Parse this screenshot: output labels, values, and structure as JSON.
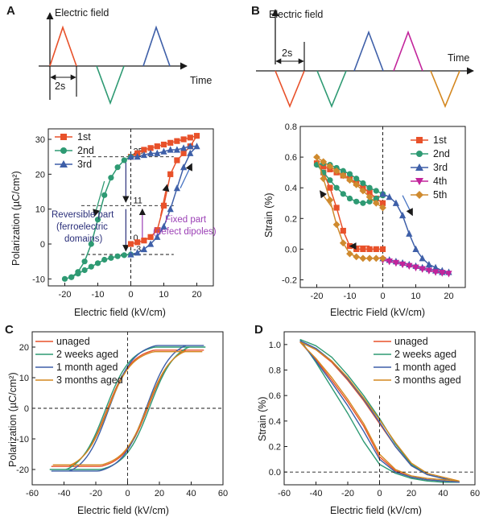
{
  "colors": {
    "first": "#e8512a",
    "second": "#2e9a73",
    "third": "#3e5fa8",
    "fourth": "#c2249b",
    "fifth": "#cf8a2e",
    "arrow_green": "#2e9a73",
    "arrow_red": "#e8512a",
    "arrow_blue": "#4a76c4",
    "arrow_navy": "#2a2f7a",
    "arrow_purple": "#9b3fb5",
    "aged_unaged": "#e8512a",
    "aged_2weeks": "#2e9a73",
    "aged_1month": "#3e5fa8",
    "aged_3months": "#d4871f"
  },
  "panels": {
    "A": {
      "label": "A",
      "wave_ylabel": "Electric field",
      "wave_xlabel": "Time",
      "dur": "2s"
    },
    "B": {
      "label": "B",
      "wave_ylabel": "Electric field",
      "wave_xlabel": "Time",
      "dur": "2s"
    },
    "C": {
      "label": "C"
    },
    "D": {
      "label": "D"
    }
  },
  "chart_data": [
    {
      "id": "A-waveform",
      "type": "line",
      "xlabel": "Time",
      "ylabel": "Electric field",
      "pulses": [
        {
          "sign": 1,
          "color": "first"
        },
        {
          "sign": -1,
          "color": "second"
        },
        {
          "sign": 1,
          "color": "third"
        }
      ],
      "annotation": "2s"
    },
    {
      "id": "B-waveform",
      "type": "line",
      "xlabel": "Time",
      "ylabel": "Electric field",
      "pulses": [
        {
          "sign": -1,
          "color": "first"
        },
        {
          "sign": -1,
          "color": "second"
        },
        {
          "sign": 1,
          "color": "third"
        },
        {
          "sign": 1,
          "color": "fourth"
        },
        {
          "sign": -1,
          "color": "fifth"
        }
      ],
      "annotation": "2s"
    },
    {
      "id": "A-plot",
      "type": "line",
      "xlabel": "Electric field (kV/cm)",
      "ylabel": "Polarization (µC/cm²)",
      "xlim": [
        -25,
        25
      ],
      "ylim": [
        -12,
        33
      ],
      "xticks": [
        -20,
        -10,
        0,
        10,
        20
      ],
      "yticks": [
        -10,
        0,
        10,
        20,
        30
      ],
      "legend_position": "top-left",
      "series": [
        {
          "name": "1st",
          "color": "first",
          "marker": "square",
          "x": [
            0,
            2,
            4,
            6,
            8,
            10,
            12,
            14,
            16,
            18,
            20,
            18,
            16,
            14,
            12,
            10,
            8,
            6,
            4,
            2,
            0
          ],
          "y": [
            0,
            0.5,
            1,
            2,
            4,
            11,
            20,
            24,
            26,
            28,
            31,
            30.5,
            30,
            29.5,
            29,
            28.5,
            28,
            27.5,
            27,
            26,
            25
          ]
        },
        {
          "name": "2nd",
          "color": "second",
          "marker": "circle",
          "x": [
            0,
            -2,
            -4,
            -6,
            -8,
            -10,
            -12,
            -14,
            -16,
            -18,
            -20,
            -18,
            -16,
            -14,
            -12,
            -10,
            -8,
            -6,
            -4,
            -2,
            0
          ],
          "y": [
            25,
            24,
            22,
            19,
            14,
            7,
            0,
            -5,
            -8,
            -9.5,
            -10,
            -9.5,
            -8.5,
            -7.5,
            -6.5,
            -5.5,
            -4.5,
            -4,
            -3.5,
            -3.2,
            -3
          ]
        },
        {
          "name": "3rd",
          "color": "third",
          "marker": "triangle",
          "x": [
            0,
            2,
            4,
            6,
            8,
            10,
            12,
            14,
            16,
            18,
            20,
            18,
            16,
            14,
            12,
            10,
            8,
            6,
            4,
            2,
            0
          ],
          "y": [
            -3,
            -2.5,
            -1.5,
            0,
            2,
            5,
            10,
            16,
            22,
            26,
            28,
            28,
            27.5,
            27,
            27,
            26.5,
            26,
            26,
            25.5,
            25,
            25
          ]
        }
      ],
      "guides": {
        "y_values": [
          25,
          11,
          -3
        ],
        "y_labels": [
          "25",
          "11",
          "-3"
        ],
        "zero_label": "0"
      },
      "annotations": [
        {
          "text": "Reversible part",
          "color": "arrow_navy"
        },
        {
          "text": "(ferroelectric",
          "color": "arrow_navy"
        },
        {
          "text": "domains)",
          "color": "arrow_navy"
        },
        {
          "text": "Fixed part",
          "color": "arrow_purple"
        },
        {
          "text": "(defect dipoles)",
          "color": "arrow_purple"
        }
      ]
    },
    {
      "id": "B-plot",
      "type": "line",
      "xlabel": "Electric Field (kV/cm)",
      "ylabel": "Strain (%)",
      "xlim": [
        -25,
        25
      ],
      "ylim": [
        -0.25,
        0.8
      ],
      "xticks": [
        -20,
        -10,
        0,
        10,
        20
      ],
      "yticks": [
        -0.2,
        0.0,
        0.2,
        0.4,
        0.6,
        0.8
      ],
      "yticklabels": [
        "-0.2",
        "0.0",
        "0.2",
        "0.4",
        "0.6",
        "0.8"
      ],
      "legend_position": "top-right",
      "series": [
        {
          "name": "1st",
          "color": "first",
          "marker": "square",
          "x": [
            0,
            -2,
            -4,
            -6,
            -8,
            -10,
            -12,
            -14,
            -16,
            -18,
            -20,
            -18,
            -16,
            -14,
            -12,
            -10,
            -8,
            -6,
            -4,
            -2,
            0
          ],
          "y": [
            0,
            0,
            0,
            0,
            0,
            0.02,
            0.12,
            0.27,
            0.4,
            0.5,
            0.56,
            0.54,
            0.52,
            0.5,
            0.48,
            0.46,
            0.43,
            0.4,
            0.37,
            0.33,
            0.3
          ]
        },
        {
          "name": "2nd",
          "color": "second",
          "marker": "circle",
          "x": [
            0,
            -2,
            -4,
            -6,
            -8,
            -10,
            -12,
            -14,
            -16,
            -18,
            -20,
            -18,
            -16,
            -14,
            -12,
            -10,
            -8,
            -6,
            -4,
            -2,
            0
          ],
          "y": [
            0.35,
            0.33,
            0.31,
            0.3,
            0.31,
            0.33,
            0.36,
            0.4,
            0.45,
            0.5,
            0.55,
            0.56,
            0.55,
            0.53,
            0.51,
            0.49,
            0.46,
            0.43,
            0.4,
            0.38,
            0.36
          ]
        },
        {
          "name": "3rd",
          "color": "third",
          "marker": "triangle",
          "x": [
            0,
            2,
            4,
            6,
            8,
            10,
            12,
            14,
            16,
            18,
            20,
            18,
            16,
            14,
            12,
            10,
            8,
            6,
            4,
            2,
            0
          ],
          "y": [
            0.36,
            0.34,
            0.3,
            0.22,
            0.1,
            0.0,
            -0.06,
            -0.1,
            -0.12,
            -0.14,
            -0.15,
            -0.15,
            -0.14,
            -0.13,
            -0.12,
            -0.11,
            -0.1,
            -0.09,
            -0.08,
            -0.07,
            -0.06
          ]
        },
        {
          "name": "4th",
          "color": "fourth",
          "marker": "triangle-down",
          "x": [
            0,
            2,
            4,
            6,
            8,
            10,
            12,
            14,
            16,
            18,
            20,
            18,
            16,
            14,
            12,
            10,
            8,
            6,
            4,
            2,
            0
          ],
          "y": [
            -0.07,
            -0.08,
            -0.09,
            -0.1,
            -0.11,
            -0.12,
            -0.13,
            -0.14,
            -0.15,
            -0.155,
            -0.16,
            -0.155,
            -0.15,
            -0.14,
            -0.13,
            -0.12,
            -0.11,
            -0.1,
            -0.09,
            -0.08,
            -0.07
          ]
        },
        {
          "name": "5th",
          "color": "fifth",
          "marker": "diamond",
          "x": [
            0,
            -2,
            -4,
            -6,
            -8,
            -10,
            -12,
            -14,
            -16,
            -18,
            -20,
            -18,
            -16,
            -14,
            -12,
            -10,
            -8,
            -6,
            -4,
            -2,
            0
          ],
          "y": [
            -0.06,
            -0.06,
            -0.06,
            -0.06,
            -0.05,
            -0.03,
            0.04,
            0.16,
            0.32,
            0.46,
            0.6,
            0.57,
            0.54,
            0.51,
            0.48,
            0.45,
            0.42,
            0.38,
            0.34,
            0.3,
            0.27
          ]
        }
      ]
    },
    {
      "id": "C-plot",
      "type": "line",
      "xlabel": "Electric field (kV/cm)",
      "ylabel": "Polarization (µC/cm²)",
      "xlim": [
        -60,
        60
      ],
      "ylim": [
        -25,
        25
      ],
      "xticks": [
        -60,
        -40,
        -20,
        0,
        20,
        40,
        60
      ],
      "yticks": [
        -20,
        -10,
        0,
        10,
        20
      ],
      "legend_position": "top-left",
      "series": [
        {
          "name": "unaged",
          "color": "aged_unaged",
          "emax": 48,
          "pmax": 19,
          "pr": 11,
          "ec": 13
        },
        {
          "name": "2 weeks aged",
          "color": "aged_2weeks",
          "emax": 49,
          "pmax": 20,
          "pr": 12,
          "ec": 14
        },
        {
          "name": "1 month aged",
          "color": "aged_1month",
          "emax": 48,
          "pmax": 20.5,
          "pr": 12,
          "ec": 12
        },
        {
          "name": "3 months aged",
          "color": "aged_3months",
          "emax": 47,
          "pmax": 18.5,
          "pr": 11,
          "ec": 12.5
        }
      ]
    },
    {
      "id": "D-plot",
      "type": "line",
      "xlabel": "Electric field (kV/cm)",
      "ylabel": "Strain (%)",
      "xlim": [
        -60,
        60
      ],
      "ylim": [
        -0.1,
        1.1
      ],
      "xticks": [
        -60,
        -40,
        -20,
        0,
        20,
        40,
        60
      ],
      "yticks": [
        0.0,
        0.2,
        0.4,
        0.6,
        0.8,
        1.0
      ],
      "yticklabels": [
        "0.0",
        "0.2",
        "0.4",
        "0.6",
        "0.8",
        "1.0"
      ],
      "legend_position": "top-right",
      "series": [
        {
          "name": "unaged",
          "color": "aged_unaged",
          "up_x": [
            -50,
            -40,
            -30,
            -20,
            -10,
            0,
            10,
            20,
            30,
            40,
            50
          ],
          "up_y": [
            1.02,
            0.88,
            0.72,
            0.55,
            0.36,
            0.12,
            0.01,
            -0.04,
            -0.06,
            -0.07,
            -0.08
          ],
          "dn_x": [
            50,
            40,
            30,
            20,
            10,
            0,
            -10,
            -20,
            -30,
            -40,
            -50
          ],
          "dn_y": [
            -0.08,
            -0.05,
            -0.02,
            0.05,
            0.2,
            0.38,
            0.56,
            0.72,
            0.86,
            0.96,
            1.02
          ]
        },
        {
          "name": "2 weeks aged",
          "color": "aged_2weeks",
          "up_x": [
            -50,
            -40,
            -30,
            -20,
            -10,
            0,
            10,
            20,
            30,
            40,
            50
          ],
          "up_y": [
            1.04,
            0.86,
            0.66,
            0.46,
            0.24,
            0.06,
            -0.01,
            -0.05,
            -0.07,
            -0.08,
            -0.08
          ],
          "dn_x": [
            50,
            40,
            30,
            20,
            10,
            0,
            -10,
            -20,
            -30,
            -40,
            -50
          ],
          "dn_y": [
            -0.08,
            -0.05,
            -0.02,
            0.06,
            0.22,
            0.42,
            0.6,
            0.76,
            0.9,
            0.99,
            1.04
          ]
        },
        {
          "name": "1 month aged",
          "color": "aged_1month",
          "up_x": [
            -50,
            -40,
            -30,
            -20,
            -10,
            0,
            10,
            20,
            30,
            40,
            50
          ],
          "up_y": [
            1.03,
            0.87,
            0.7,
            0.52,
            0.32,
            0.1,
            0.0,
            -0.04,
            -0.06,
            -0.07,
            -0.08
          ],
          "dn_x": [
            50,
            40,
            30,
            20,
            10,
            0,
            -10,
            -20,
            -30,
            -40,
            -50
          ],
          "dn_y": [
            -0.08,
            -0.05,
            -0.02,
            0.05,
            0.2,
            0.39,
            0.57,
            0.73,
            0.87,
            0.97,
            1.03
          ]
        },
        {
          "name": "3 months aged",
          "color": "aged_3months",
          "up_x": [
            -50,
            -40,
            -30,
            -20,
            -10,
            0,
            10,
            20,
            30,
            40,
            50
          ],
          "up_y": [
            1.02,
            0.89,
            0.74,
            0.57,
            0.38,
            0.14,
            0.02,
            -0.03,
            -0.05,
            -0.06,
            -0.07
          ],
          "dn_x": [
            50,
            40,
            30,
            20,
            10,
            0,
            -10,
            -20,
            -30,
            -40,
            -50
          ],
          "dn_y": [
            -0.07,
            -0.04,
            -0.01,
            0.07,
            0.23,
            0.41,
            0.58,
            0.74,
            0.87,
            0.96,
            1.02
          ]
        }
      ]
    }
  ]
}
